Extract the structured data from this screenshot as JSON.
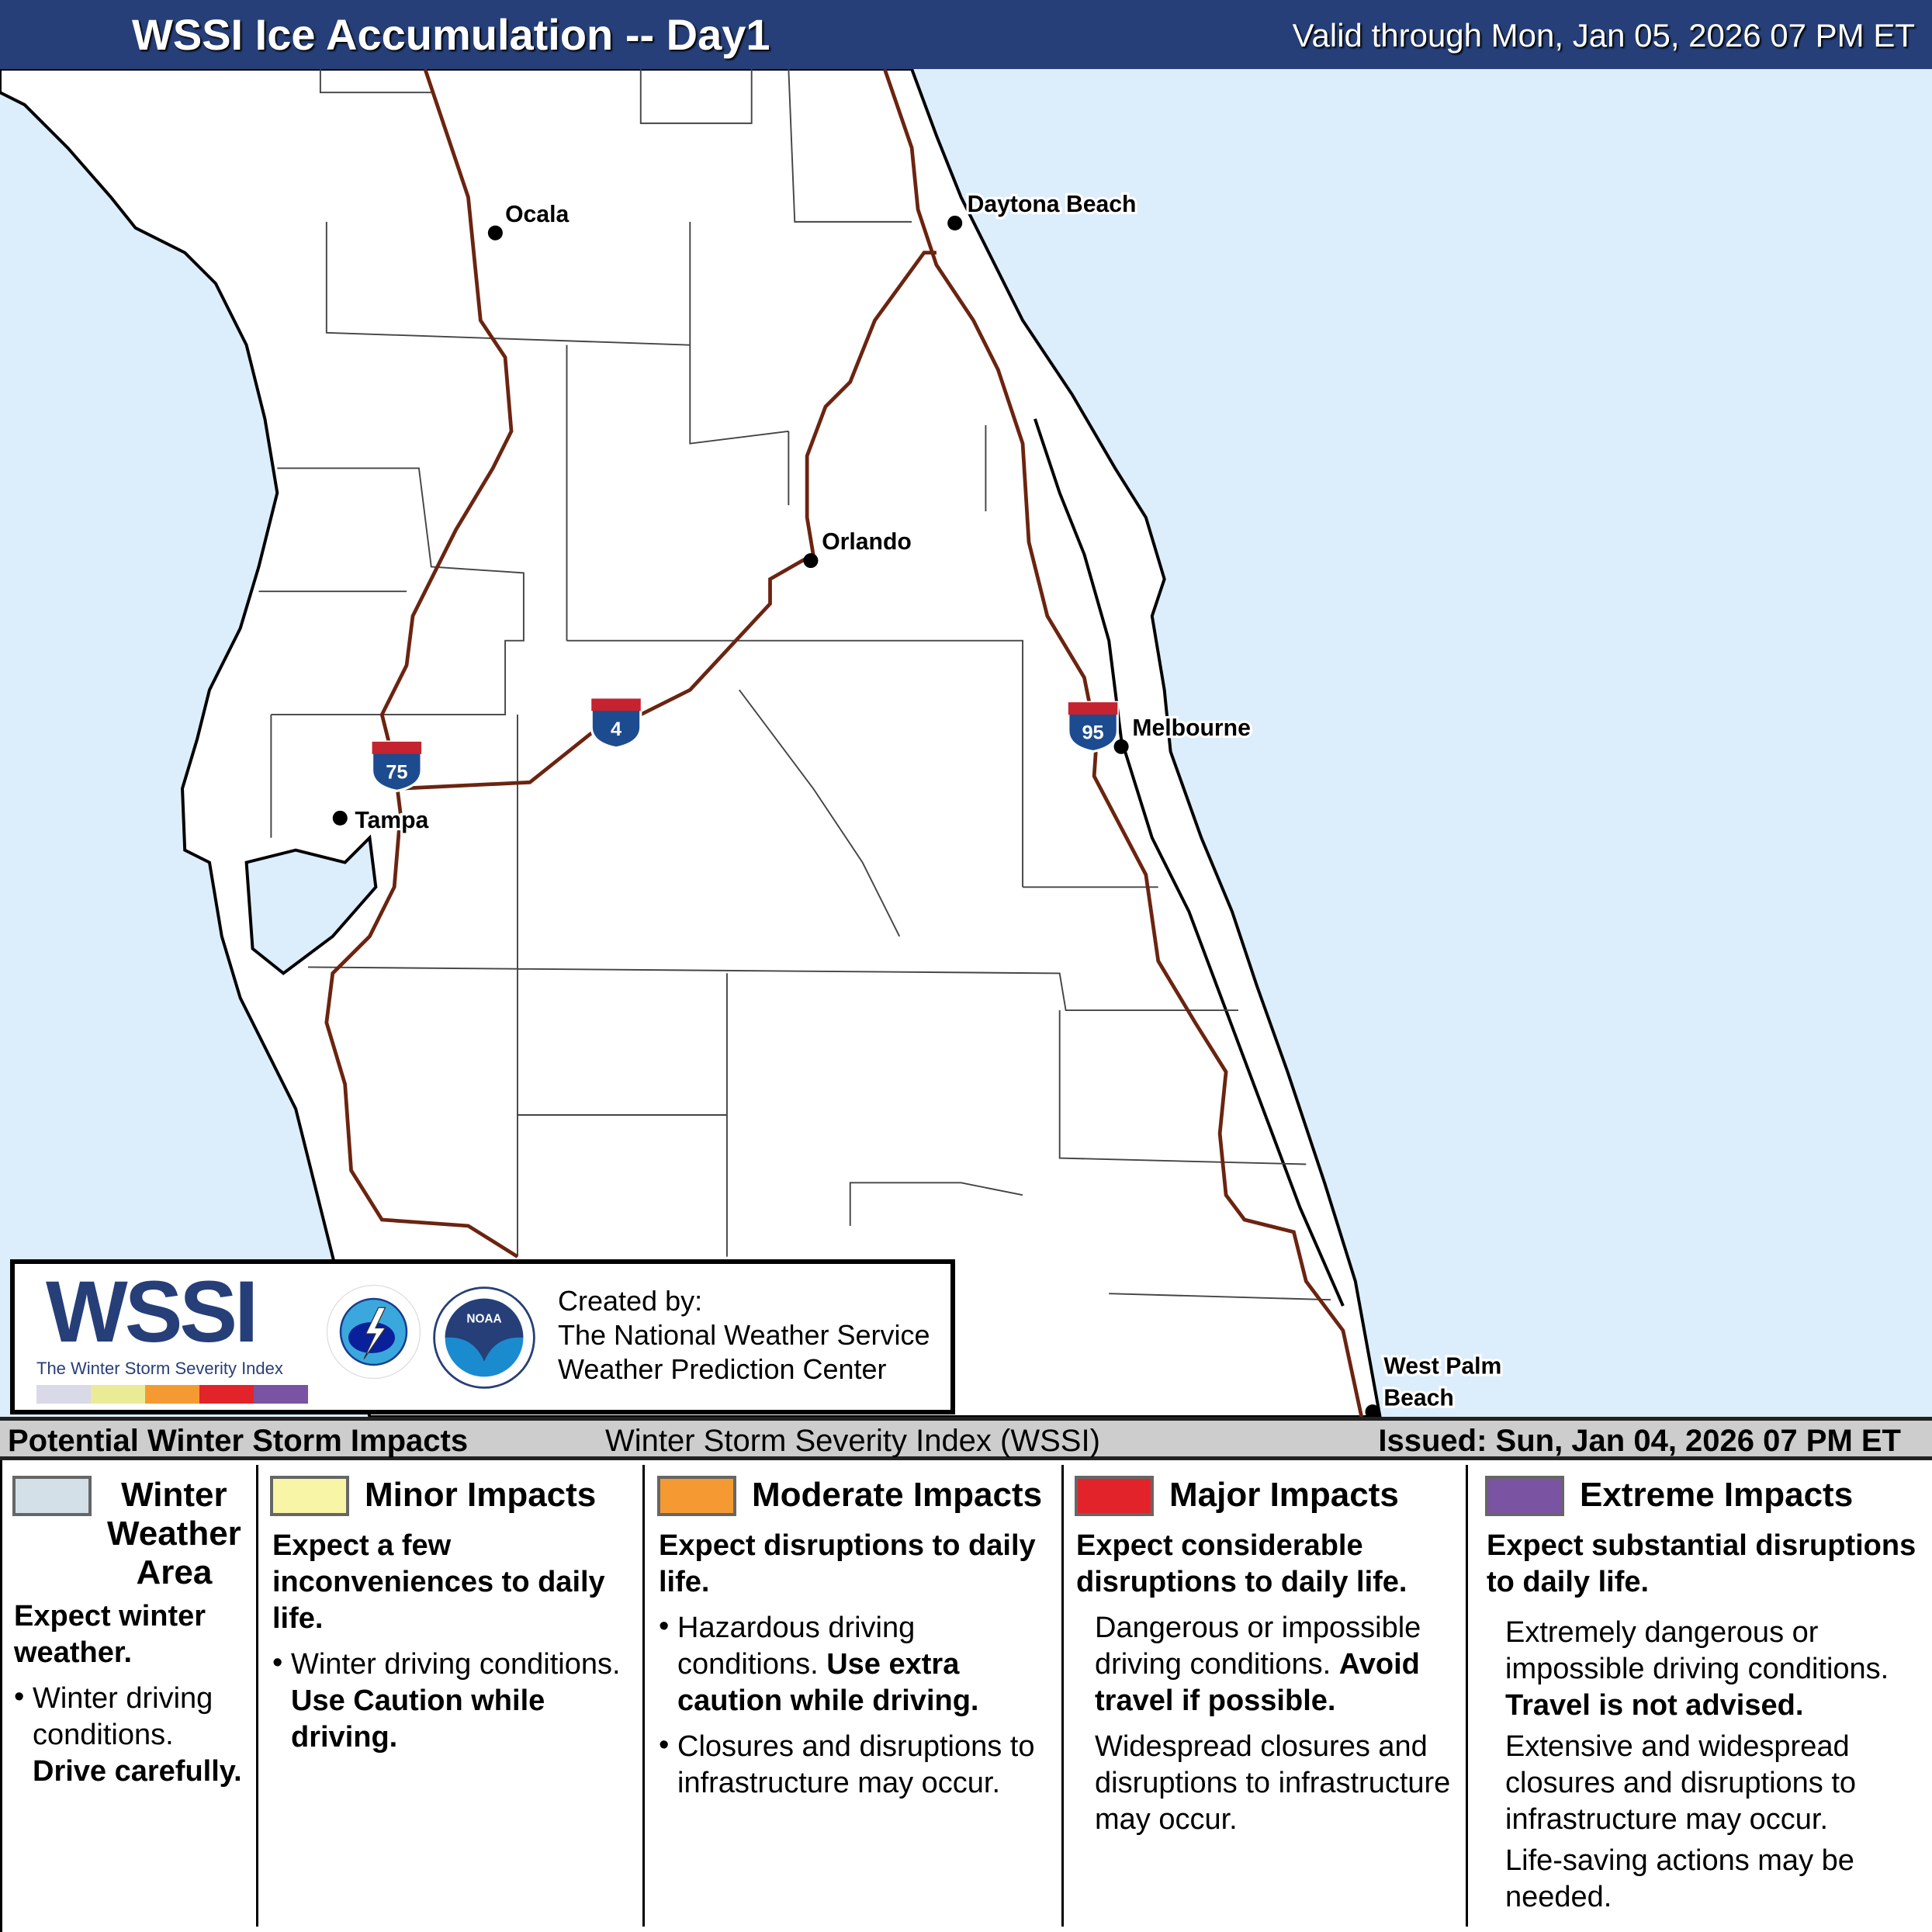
{
  "header": {
    "title": "WSSI Ice Accumulation -- Day1",
    "valid": "Valid through Mon, Jan 05, 2026 07 PM ET"
  },
  "map": {
    "colors": {
      "ocean": "#dcedfb",
      "land": "#ffffff",
      "interstate": "#6b2410"
    },
    "cities": [
      {
        "name": "Ocala"
      },
      {
        "name": "Daytona Beach"
      },
      {
        "name": "Orlando"
      },
      {
        "name": "Melbourne"
      },
      {
        "name": "Tampa"
      },
      {
        "name": "West Palm Beach",
        "line1": "West Palm",
        "line2": "Beach"
      }
    ],
    "interstates": [
      {
        "number": "75"
      },
      {
        "number": "4"
      },
      {
        "number": "95"
      }
    ]
  },
  "logo": {
    "wssi": "WSSI",
    "tm": "TM",
    "subtitle": "The Winter Storm Severity Index",
    "nws": "NATIONAL WEATHER SERVICE",
    "noaa": "NOAA",
    "created_by": "Created by:",
    "org1": "The National Weather Service",
    "org2": "Weather Prediction Center",
    "bar_colors": [
      "#d9d9e8",
      "#eaeb96",
      "#f59a33",
      "#e3232a",
      "#7a53a2"
    ]
  },
  "bar": {
    "left": "Potential Winter Storm Impacts",
    "center": "Winter Storm Severity Index (WSSI)",
    "right": "Issued: Sun, Jan 04, 2026 07 PM ET"
  },
  "legend": [
    {
      "title": "Winter Weather Area",
      "t1": "Winter",
      "t2": "Weather",
      "t3": "Area",
      "color": "#d3e0e8",
      "lead": "Expect winter weather.",
      "bullet": "Winter driving conditions.",
      "bold": "Drive carefully."
    },
    {
      "title": "Minor Impacts",
      "color": "#f9f5a6",
      "lead": "Expect a few inconveniences to daily life.",
      "bullet": "Winter driving conditions.",
      "bold": "Use Caution while driving."
    },
    {
      "title": "Moderate Impacts",
      "color": "#f59a33",
      "lead": "Expect disruptions to daily life.",
      "bullet": "Hazardous driving conditions.",
      "bold": "Use extra caution while driving.",
      "bullet2": "Closures and disruptions to infrastructure may occur."
    },
    {
      "title": "Major Impacts",
      "color": "#e3232a",
      "lead": "Expect considerable disruptions to daily life.",
      "p1": "Dangerous or impossible driving conditions.",
      "bold": "Avoid travel if possible.",
      "p2": "Widespread closures and disruptions to infrastructure may occur."
    },
    {
      "title": "Extreme Impacts",
      "color": "#7a53a2",
      "lead": "Expect substantial disruptions to daily life.",
      "p1": "Extremely dangerous or impossible driving conditions.",
      "bold": "Travel is not advised.",
      "p2": "Extensive and widespread closures and disruptions to infrastructure may occur.",
      "p3": "Life-saving actions may be needed."
    }
  ]
}
